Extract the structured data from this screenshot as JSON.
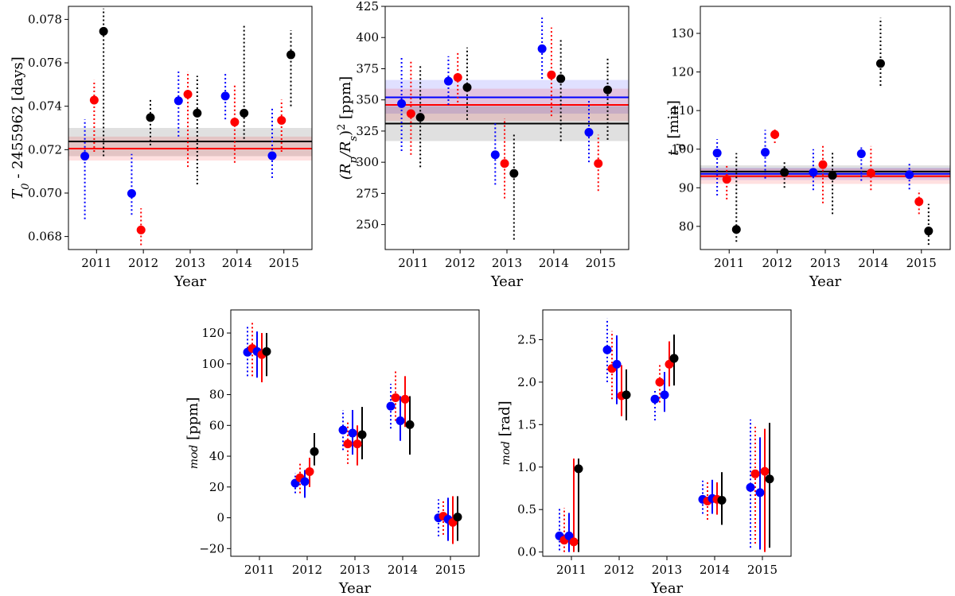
{
  "figure": {
    "colors": {
      "blue": "#0000ff",
      "red": "#ff0000",
      "black": "#000000"
    }
  },
  "chart_data": [
    {
      "type": "scatter",
      "name": "t0",
      "xlabel": "Year",
      "ylabel": "T_0 - 2455962 [days]",
      "ylabel_parts": {
        "main": "T",
        "sub": "0",
        "rest": " - 2455962 [days]"
      },
      "categories": [
        "2011",
        "2012",
        "2013",
        "2014",
        "2015"
      ],
      "ylim": [
        0.0674,
        0.0786
      ],
      "yticks": [
        0.068,
        0.07,
        0.072,
        0.074,
        0.076,
        0.078
      ],
      "ytick_labels": [
        "0.068",
        "0.070",
        "0.072",
        "0.074",
        "0.076",
        "0.078"
      ],
      "hlines": [
        {
          "color": "black",
          "value": 0.07238,
          "band": [
            0.0717,
            0.073
          ]
        },
        {
          "color": "red",
          "value": 0.07205,
          "band": [
            0.0715,
            0.0726
          ]
        }
      ],
      "series": [
        {
          "color": "blue",
          "offset": -0.25,
          "values": [
            0.0717,
            0.06998,
            0.07425,
            0.07447,
            0.07172
          ],
          "errors": [
            {
              "lo": 0.0688,
              "hi": 0.0734,
              "style": "dotted"
            },
            {
              "lo": 0.069,
              "hi": 0.0718,
              "style": "dotted"
            },
            {
              "lo": 0.0726,
              "hi": 0.0756,
              "style": "dotted"
            },
            {
              "lo": 0.0734,
              "hi": 0.0755,
              "style": "dotted"
            },
            {
              "lo": 0.0707,
              "hi": 0.0739,
              "style": "dotted"
            }
          ]
        },
        {
          "color": "red",
          "offset": -0.05,
          "values": [
            0.07428,
            0.0683,
            0.07455,
            0.07327,
            0.07335
          ],
          "errors": [
            {
              "lo": 0.0719,
              "hi": 0.0752,
              "style": "dotted"
            },
            {
              "lo": 0.0676,
              "hi": 0.0693,
              "style": "dotted"
            },
            {
              "lo": 0.0712,
              "hi": 0.0756,
              "style": "dotted"
            },
            {
              "lo": 0.0714,
              "hi": 0.075,
              "style": "dotted"
            },
            {
              "lo": 0.0719,
              "hi": 0.0743,
              "style": "dotted"
            }
          ]
        },
        {
          "color": "black",
          "offset": 0.15,
          "values": [
            0.07745,
            0.07348,
            0.07368,
            0.07368,
            0.07637
          ],
          "errors": [
            {
              "lo": 0.0717,
              "hi": 0.0785,
              "style": "dotted"
            },
            {
              "lo": 0.0722,
              "hi": 0.0743,
              "style": "dotted"
            },
            {
              "lo": 0.0704,
              "hi": 0.0754,
              "style": "dotted"
            },
            {
              "lo": 0.0725,
              "hi": 0.0778,
              "style": "dotted"
            },
            {
              "lo": 0.074,
              "hi": 0.0775,
              "style": "dotted"
            }
          ]
        }
      ]
    },
    {
      "type": "scatter",
      "name": "depth",
      "xlabel": "Year",
      "ylabel": "(R_p/R_s)^2 [ppm]",
      "ylabel_parts": {
        "pre": "(R",
        "sub1": "p",
        "mid": "/R",
        "sub2": "s",
        "close": ")",
        "sup": "2",
        "rest": " [ppm]"
      },
      "categories": [
        "2011",
        "2012",
        "2013",
        "2014",
        "2015"
      ],
      "ylim": [
        230,
        425
      ],
      "yticks": [
        250,
        275,
        300,
        325,
        350,
        375,
        400,
        425
      ],
      "ytick_labels": [
        "250",
        "275",
        "300",
        "325",
        "350",
        "375",
        "400",
        "425"
      ],
      "hlines": [
        {
          "color": "blue",
          "value": 352,
          "band": [
            339,
            366
          ]
        },
        {
          "color": "red",
          "value": 346,
          "band": [
            333,
            359
          ]
        },
        {
          "color": "black",
          "value": 331,
          "band": [
            317,
            345
          ]
        }
      ],
      "series": [
        {
          "color": "blue",
          "offset": -0.25,
          "values": [
            347,
            365,
            306,
            391,
            324
          ],
          "errors": [
            {
              "lo": 309,
              "hi": 385,
              "style": "dotted"
            },
            {
              "lo": 346,
              "hi": 385,
              "style": "dotted"
            },
            {
              "lo": 282,
              "hi": 332,
              "style": "dotted"
            },
            {
              "lo": 367,
              "hi": 416,
              "style": "dotted"
            },
            {
              "lo": 300,
              "hi": 351,
              "style": "dotted"
            }
          ]
        },
        {
          "color": "red",
          "offset": -0.05,
          "values": [
            339,
            368,
            299,
            370,
            299
          ],
          "errors": [
            {
              "lo": 306,
              "hi": 381,
              "style": "dotted"
            },
            {
              "lo": 348,
              "hi": 388,
              "style": "dotted"
            },
            {
              "lo": 271,
              "hi": 335,
              "style": "dotted"
            },
            {
              "lo": 337,
              "hi": 408,
              "style": "dotted"
            },
            {
              "lo": 277,
              "hi": 322,
              "style": "dotted"
            }
          ]
        },
        {
          "color": "black",
          "offset": 0.15,
          "values": [
            336,
            360,
            291,
            367,
            358
          ],
          "errors": [
            {
              "lo": 296,
              "hi": 378,
              "style": "dotted"
            },
            {
              "lo": 334,
              "hi": 392,
              "style": "dotted"
            },
            {
              "lo": 238,
              "hi": 323,
              "style": "dotted"
            },
            {
              "lo": 317,
              "hi": 399,
              "style": "dotted"
            },
            {
              "lo": 318,
              "hi": 384,
              "style": "dotted"
            }
          ]
        }
      ]
    },
    {
      "type": "scatter",
      "name": "duration",
      "xlabel": "Year",
      "ylabel": "t_d [min]",
      "ylabel_parts": {
        "main": "t",
        "sub": "d",
        "rest": " [min]"
      },
      "categories": [
        "2011",
        "2012",
        "2013",
        "2014",
        "2015"
      ],
      "ylim": [
        74,
        137
      ],
      "yticks": [
        80,
        90,
        100,
        110,
        120,
        130
      ],
      "ytick_labels": [
        "80",
        "90",
        "100",
        "110",
        "120",
        "130"
      ],
      "hlines": [
        {
          "color": "black",
          "value": 94.2,
          "band": [
            92.6,
            95.8
          ]
        },
        {
          "color": "blue",
          "value": 93.6,
          "band": [
            92.0,
            95.2
          ]
        },
        {
          "color": "red",
          "value": 93.0,
          "band": [
            91.0,
            95.0
          ]
        }
      ],
      "series": [
        {
          "color": "blue",
          "offset": -0.25,
          "values": [
            99.0,
            99.2,
            94.0,
            98.8,
            93.4
          ],
          "errors": [
            {
              "lo": 88.0,
              "hi": 102.6,
              "style": "dotted"
            },
            {
              "lo": 92.4,
              "hi": 105.0,
              "style": "dotted"
            },
            {
              "lo": 89.4,
              "hi": 100.0,
              "style": "dotted"
            },
            {
              "lo": 91.8,
              "hi": 101.0,
              "style": "dotted"
            },
            {
              "lo": 89.6,
              "hi": 96.6,
              "style": "dotted"
            }
          ]
        },
        {
          "color": "red",
          "offset": -0.05,
          "values": [
            92.2,
            103.8,
            96.0,
            93.8,
            86.4
          ],
          "errors": [
            {
              "lo": 87.0,
              "hi": 96.0,
              "style": "dotted"
            },
            {
              "lo": 101.6,
              "hi": 105.6,
              "style": "dotted"
            },
            {
              "lo": 86.0,
              "hi": 101.0,
              "style": "dotted"
            },
            {
              "lo": 89.4,
              "hi": 100.8,
              "style": "dotted"
            },
            {
              "lo": 83.2,
              "hi": 89.4,
              "style": "dotted"
            }
          ]
        },
        {
          "color": "black",
          "offset": 0.15,
          "values": [
            79.2,
            94.0,
            93.2,
            122.2,
            78.8
          ],
          "errors": [
            {
              "lo": 76.0,
              "hi": 99.0,
              "style": "dotted"
            },
            {
              "lo": 90.0,
              "hi": 97.0,
              "style": "dotted"
            },
            {
              "lo": 83.2,
              "hi": 99.4,
              "style": "dotted"
            },
            {
              "lo": 116.4,
              "hi": 134.0,
              "style": "dotted"
            },
            {
              "lo": 75.2,
              "hi": 85.8,
              "style": "dotted"
            }
          ]
        }
      ]
    },
    {
      "type": "scatter",
      "name": "amplitude",
      "xlabel": "Year",
      "ylabel": "mod [ppm]",
      "ylabel_parts": {
        "italic": "mod",
        "rest": " [ppm]"
      },
      "categories": [
        "2011",
        "2012",
        "2013",
        "2014",
        "2015"
      ],
      "ylim": [
        -25,
        135
      ],
      "yticks": [
        -20,
        0,
        20,
        40,
        60,
        80,
        100,
        120
      ],
      "ytick_labels": [
        "−20",
        "0",
        "20",
        "40",
        "60",
        "80",
        "100",
        "120"
      ],
      "hlines": [],
      "series": [
        {
          "color": "blue",
          "offset": -0.25,
          "values": [
            107.5,
            22.5,
            57,
            72.5,
            0
          ],
          "errors": [
            {
              "lo": 92,
              "hi": 124,
              "style": "dotted"
            },
            {
              "lo": 16,
              "hi": 29,
              "style": "dotted"
            },
            {
              "lo": 44,
              "hi": 70,
              "style": "dotted"
            },
            {
              "lo": 58,
              "hi": 87,
              "style": "dotted"
            },
            {
              "lo": -12,
              "hi": 12,
              "style": "dotted"
            }
          ]
        },
        {
          "color": "red",
          "offset": -0.15,
          "values": [
            110,
            26,
            48,
            78,
            1
          ],
          "errors": [
            {
              "lo": 92,
              "hi": 128,
              "style": "dotted"
            },
            {
              "lo": 16,
              "hi": 36,
              "style": "dotted"
            },
            {
              "lo": 35,
              "hi": 62,
              "style": "dotted"
            },
            {
              "lo": 63,
              "hi": 95,
              "style": "dotted"
            },
            {
              "lo": -11,
              "hi": 12,
              "style": "dotted"
            }
          ]
        },
        {
          "color": "blue",
          "offset": -0.05,
          "values": [
            108,
            23.5,
            55,
            63,
            -1
          ],
          "errors": [
            {
              "lo": 91,
              "hi": 121,
              "style": "solid"
            },
            {
              "lo": 13,
              "hi": 31,
              "style": "solid"
            },
            {
              "lo": 41,
              "hi": 70,
              "style": "solid"
            },
            {
              "lo": 50,
              "hi": 79,
              "style": "solid"
            },
            {
              "lo": -15,
              "hi": 13,
              "style": "solid"
            }
          ]
        },
        {
          "color": "red",
          "offset": 0.05,
          "values": [
            106,
            30,
            48,
            77,
            -3
          ],
          "errors": [
            {
              "lo": 88,
              "hi": 120,
              "style": "solid"
            },
            {
              "lo": 20,
              "hi": 39,
              "style": "solid"
            },
            {
              "lo": 34,
              "hi": 60,
              "style": "solid"
            },
            {
              "lo": 59,
              "hi": 92,
              "style": "solid"
            },
            {
              "lo": -17,
              "hi": 14,
              "style": "solid"
            }
          ]
        },
        {
          "color": "black",
          "offset": 0.15,
          "values": [
            108,
            43,
            54,
            60.5,
            0.5
          ],
          "errors": [
            {
              "lo": 92,
              "hi": 120,
              "style": "solid"
            },
            {
              "lo": 34,
              "hi": 55,
              "style": "solid"
            },
            {
              "lo": 38,
              "hi": 72,
              "style": "solid"
            },
            {
              "lo": 41,
              "hi": 79,
              "style": "solid"
            },
            {
              "lo": -15,
              "hi": 14,
              "style": "solid"
            }
          ]
        }
      ]
    },
    {
      "type": "scatter",
      "name": "phase",
      "xlabel": "Year",
      "ylabel": "mod [rad]",
      "ylabel_parts": {
        "italic": "mod",
        "rest": " [rad]"
      },
      "categories": [
        "2011",
        "2012",
        "2013",
        "2014",
        "2015"
      ],
      "ylim": [
        -0.05,
        2.85
      ],
      "yticks": [
        0.0,
        0.5,
        1.0,
        1.5,
        2.0,
        2.5
      ],
      "ytick_labels": [
        "0.0",
        "0.5",
        "1.0",
        "1.5",
        "2.0",
        "2.5"
      ],
      "hlines": [],
      "series": [
        {
          "color": "blue",
          "offset": -0.25,
          "values": [
            0.19,
            2.38,
            1.8,
            0.62,
            0.76
          ],
          "errors": [
            {
              "lo": 0.02,
              "hi": 0.52,
              "style": "dotted"
            },
            {
              "lo": 2.0,
              "hi": 2.75,
              "style": "dotted"
            },
            {
              "lo": 1.55,
              "hi": 1.92,
              "style": "dotted"
            },
            {
              "lo": 0.45,
              "hi": 0.84,
              "style": "dotted"
            },
            {
              "lo": 0.05,
              "hi": 1.56,
              "style": "dotted"
            }
          ]
        },
        {
          "color": "red",
          "offset": -0.15,
          "values": [
            0.14,
            2.16,
            2.0,
            0.6,
            0.92
          ],
          "errors": [
            {
              "lo": 0.0,
              "hi": 0.52,
              "style": "dotted"
            },
            {
              "lo": 1.8,
              "hi": 2.6,
              "style": "dotted"
            },
            {
              "lo": 1.76,
              "hi": 2.2,
              "style": "dotted"
            },
            {
              "lo": 0.38,
              "hi": 0.82,
              "style": "dotted"
            },
            {
              "lo": 0.1,
              "hi": 1.48,
              "style": "dotted"
            }
          ]
        },
        {
          "color": "blue",
          "offset": -0.05,
          "values": [
            0.19,
            2.21,
            1.85,
            0.63,
            0.7
          ],
          "errors": [
            {
              "lo": 0.0,
              "hi": 0.46,
              "style": "solid"
            },
            {
              "lo": 1.74,
              "hi": 2.55,
              "style": "solid"
            },
            {
              "lo": 1.65,
              "hi": 2.12,
              "style": "solid"
            },
            {
              "lo": 0.45,
              "hi": 0.85,
              "style": "solid"
            },
            {
              "lo": 0.03,
              "hi": 1.35,
              "style": "solid"
            }
          ]
        },
        {
          "color": "red",
          "offset": 0.05,
          "values": [
            0.12,
            1.84,
            2.21,
            0.62,
            0.95
          ],
          "errors": [
            {
              "lo": 0.0,
              "hi": 1.1,
              "style": "solid"
            },
            {
              "lo": 1.6,
              "hi": 2.2,
              "style": "solid"
            },
            {
              "lo": 1.95,
              "hi": 2.48,
              "style": "solid"
            },
            {
              "lo": 0.44,
              "hi": 0.82,
              "style": "solid"
            },
            {
              "lo": 0.0,
              "hi": 1.45,
              "style": "solid"
            }
          ]
        },
        {
          "color": "black",
          "offset": 0.15,
          "values": [
            0.98,
            1.85,
            2.28,
            0.61,
            0.86
          ],
          "errors": [
            {
              "lo": 0.0,
              "hi": 1.1,
              "style": "solid"
            },
            {
              "lo": 1.55,
              "hi": 2.15,
              "style": "solid"
            },
            {
              "lo": 1.96,
              "hi": 2.56,
              "style": "solid"
            },
            {
              "lo": 0.32,
              "hi": 0.94,
              "style": "solid"
            },
            {
              "lo": 0.05,
              "hi": 1.52,
              "style": "solid"
            }
          ]
        }
      ]
    }
  ]
}
